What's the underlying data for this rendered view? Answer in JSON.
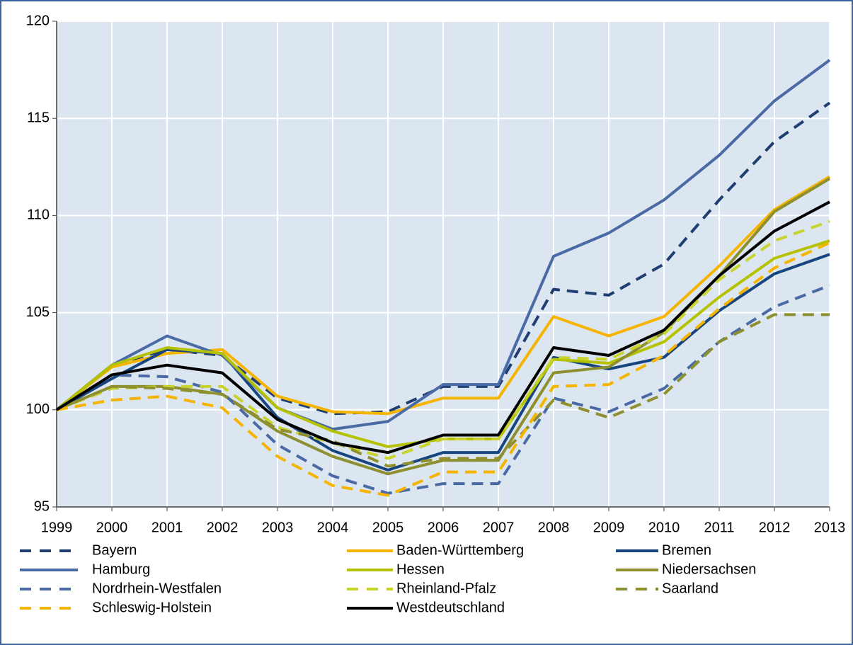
{
  "chart_data": {
    "type": "line",
    "x": [
      1999,
      2000,
      2001,
      2002,
      2003,
      2004,
      2005,
      2006,
      2007,
      2008,
      2009,
      2010,
      2011,
      2012,
      2013
    ],
    "xlim": [
      1999,
      2013
    ],
    "ylim": [
      95,
      120
    ],
    "yticks": [
      95,
      100,
      105,
      110,
      115,
      120
    ],
    "grid": true,
    "series": [
      {
        "name": "Bayern",
        "color": "#1f3f73",
        "dashed": true,
        "values": [
          100,
          102.3,
          103.1,
          102.8,
          100.6,
          99.8,
          99.9,
          101.2,
          101.2,
          106.2,
          105.9,
          107.5,
          110.8,
          113.8,
          115.8
        ]
      },
      {
        "name": "Baden-Württemberg",
        "color": "#f5b400",
        "dashed": false,
        "values": [
          100,
          102.2,
          102.9,
          103.1,
          100.7,
          99.9,
          99.8,
          100.6,
          100.6,
          104.8,
          103.8,
          104.8,
          107.4,
          110.3,
          112.0
        ]
      },
      {
        "name": "Bremen",
        "color": "#17457f",
        "dashed": false,
        "values": [
          100,
          101.6,
          103.1,
          102.9,
          99.6,
          97.9,
          96.9,
          97.8,
          97.8,
          102.7,
          102.1,
          102.7,
          105.1,
          107.0,
          108.0
        ]
      },
      {
        "name": "Hamburg",
        "color": "#4a6aa5",
        "dashed": false,
        "values": [
          100,
          102.3,
          103.8,
          102.8,
          100.1,
          99.0,
          99.4,
          101.3,
          101.3,
          107.9,
          109.1,
          110.8,
          113.1,
          115.9,
          118.0
        ]
      },
      {
        "name": "Hessen",
        "color": "#b5c200",
        "dashed": false,
        "values": [
          100,
          102.3,
          103.2,
          102.9,
          100.1,
          98.9,
          98.1,
          98.5,
          98.5,
          102.6,
          102.4,
          103.5,
          105.8,
          107.8,
          108.7
        ]
      },
      {
        "name": "Niedersachsen",
        "color": "#8e8f2e",
        "dashed": false,
        "values": [
          100,
          101.2,
          101.2,
          100.8,
          98.9,
          97.6,
          96.7,
          97.4,
          97.4,
          101.9,
          102.2,
          104.0,
          106.9,
          110.2,
          111.9
        ]
      },
      {
        "name": "Nordrhein-Westfalen",
        "color": "#4a6aa5",
        "dashed": true,
        "values": [
          100,
          101.8,
          101.7,
          100.9,
          98.2,
          96.6,
          95.7,
          96.2,
          96.2,
          100.6,
          99.9,
          101.1,
          103.5,
          105.3,
          106.4
        ]
      },
      {
        "name": "Rheinland-Pfalz",
        "color": "#c8d32e",
        "dashed": true,
        "values": [
          100,
          101.1,
          101.2,
          101.2,
          99.1,
          98.3,
          97.5,
          98.5,
          98.5,
          102.7,
          102.6,
          103.9,
          106.7,
          108.7,
          109.7
        ]
      },
      {
        "name": "Saarland",
        "color": "#8e8f2e",
        "dashed": true,
        "values": [
          100,
          101.2,
          101.1,
          100.8,
          99.0,
          98.4,
          97.1,
          97.5,
          97.5,
          100.5,
          99.6,
          100.8,
          103.5,
          104.9,
          104.9
        ]
      },
      {
        "name": "Schleswig-Holstein",
        "color": "#f5b400",
        "dashed": true,
        "values": [
          100,
          100.5,
          100.7,
          100.1,
          97.6,
          96.1,
          95.6,
          96.8,
          96.8,
          101.2,
          101.3,
          102.8,
          105.2,
          107.3,
          108.6
        ]
      },
      {
        "name": "Westdeutschland",
        "color": "#000000",
        "dashed": false,
        "values": [
          100,
          101.8,
          102.3,
          101.9,
          99.5,
          98.3,
          97.8,
          98.7,
          98.7,
          103.2,
          102.8,
          104.1,
          106.9,
          109.2,
          110.7
        ]
      }
    ]
  }
}
